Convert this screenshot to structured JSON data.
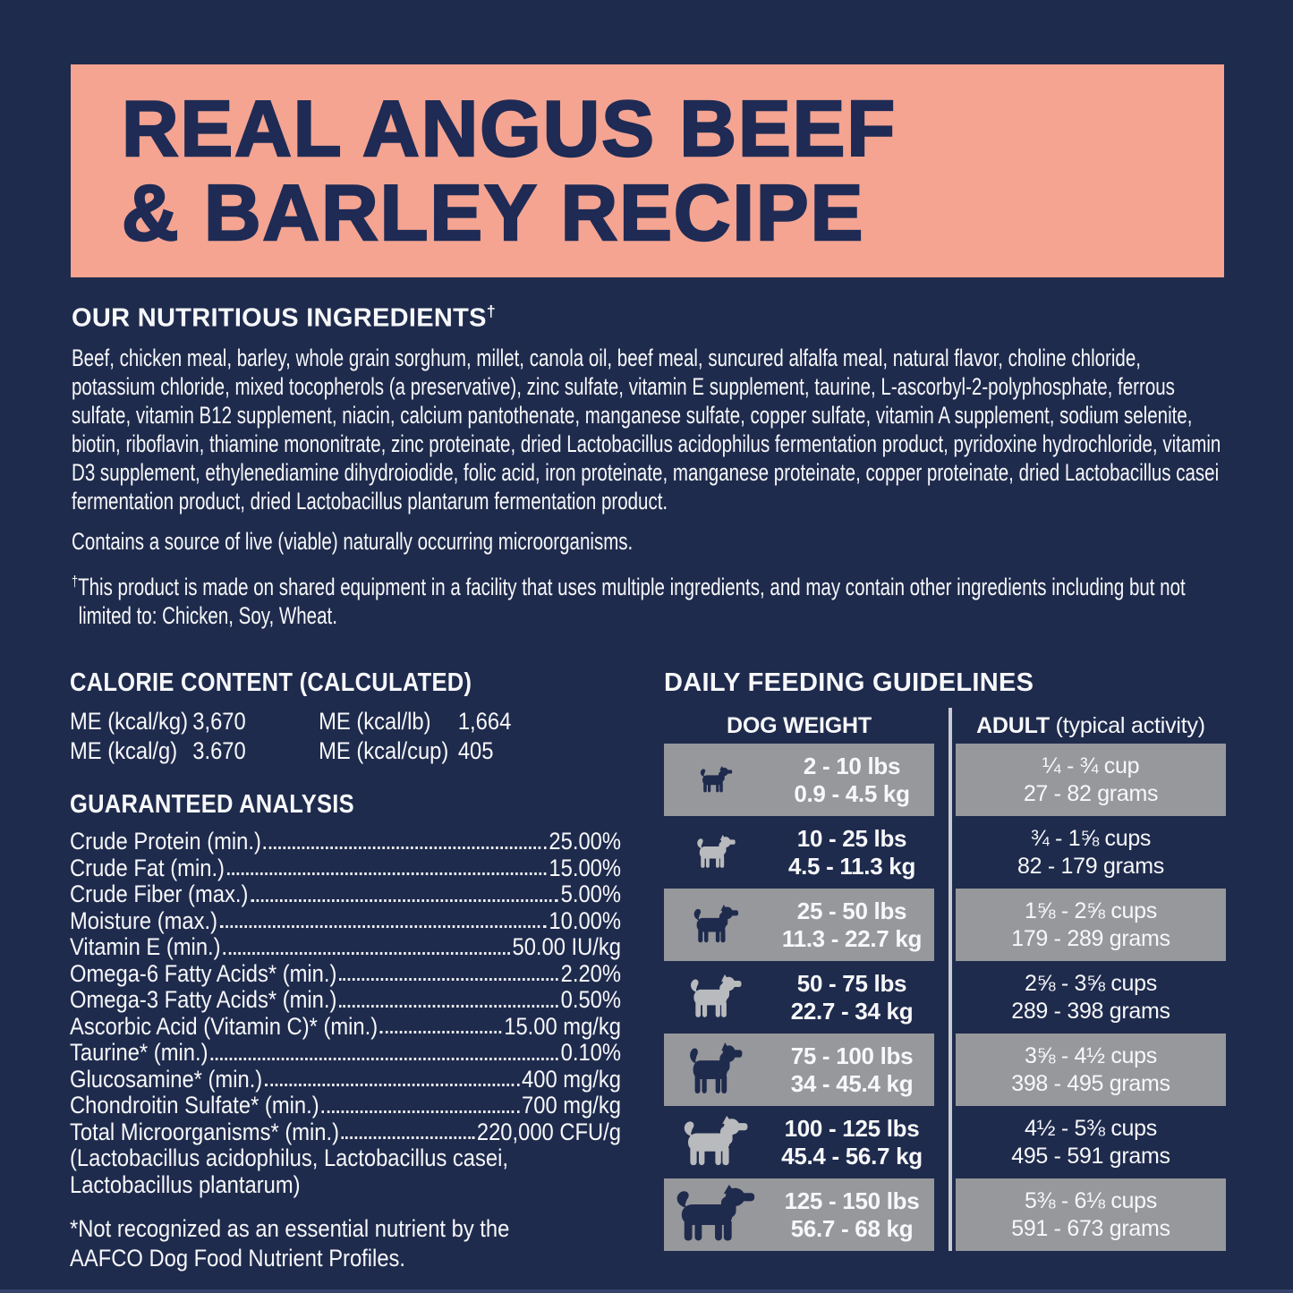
{
  "colors": {
    "background": "#1f2b4d",
    "banner_bg": "#f4a491",
    "banner_text": "#1f2b55",
    "body_text": "#f7f8fa",
    "row_gray": "#97989c",
    "icon_gray": "#b8babd",
    "divider": "#c9cbd0"
  },
  "banner": {
    "title_line1": "REAL ANGUS BEEF",
    "title_line2": "& BARLEY RECIPE"
  },
  "ingredients": {
    "heading": "OUR NUTRITIOUS INGREDIENTS",
    "heading_dagger": "†",
    "body": "Beef, chicken meal, barley, whole grain sorghum, millet, canola oil, beef meal, suncured alfalfa meal, natural flavor, choline chloride, potassium chloride, mixed tocopherols (a preservative), zinc sulfate, vitamin E supplement, taurine, L-ascorbyl-2-polyphosphate, ferrous sulfate, vitamin B12 supplement, niacin, calcium pantothenate, manganese sulfate, copper sulfate, vitamin A supplement, sodium selenite, biotin, riboflavin, thiamine mononitrate, zinc proteinate, dried Lactobacillus acidophilus fermentation product, pyridoxine hydrochloride, vitamin D3 supplement, ethylenediamine dihydroiodide, folic acid, iron proteinate, manganese proteinate, copper proteinate, dried Lactobacillus casei fermentation product, dried Lactobacillus plantarum fermentation product.",
    "contains_note": "Contains a source of live (viable) naturally occurring microorganisms.",
    "footnote_dagger": "†",
    "footnote": "This product is made on shared equipment in a facility that uses multiple ingredients, and may contain other ingredients including but not limited to: Chicken, Soy, Wheat."
  },
  "calories": {
    "heading": "CALORIE CONTENT (CALCULATED)",
    "entries": [
      {
        "label": "ME (kcal/kg)",
        "value": "3,670"
      },
      {
        "label": "ME (kcal/g)",
        "value": "3.670"
      },
      {
        "label": "ME (kcal/lb)",
        "value": "1,664"
      },
      {
        "label": "ME (kcal/cup)",
        "value": "405"
      }
    ]
  },
  "analysis": {
    "heading": "GUARANTEED ANALYSIS",
    "rows": [
      {
        "label": "Crude Protein (min.)",
        "value": "25.00%"
      },
      {
        "label": "Crude Fat (min.)",
        "value": "15.00%"
      },
      {
        "label": "Crude Fiber (max.)",
        "value": "5.00%"
      },
      {
        "label": "Moisture (max.)",
        "value": "10.00%"
      },
      {
        "label": "Vitamin E (min.)",
        "value": "50.00 IU/kg"
      },
      {
        "label": "Omega-6 Fatty Acids* (min.)",
        "value": "2.20%"
      },
      {
        "label": "Omega-3 Fatty Acids* (min.)",
        "value": "0.50%"
      },
      {
        "label": "Ascorbic Acid (Vitamin C)* (min.)",
        "value": "15.00 mg/kg"
      },
      {
        "label": "Taurine* (min.)",
        "value": "0.10%"
      },
      {
        "label": "Glucosamine* (min.)",
        "value": "400 mg/kg"
      },
      {
        "label": "Chondroitin Sulfate* (min.)",
        "value": "700 mg/kg"
      },
      {
        "label": "Total Microorganisms* (min.)",
        "value": "220,000 CFU/g"
      }
    ],
    "extra_lines": [
      "(Lactobacillus acidophilus, Lactobacillus casei,",
      "Lactobacillus plantarum)"
    ],
    "footnote_lines": [
      "*Not recognized as an essential nutrient by the",
      "AAFCO Dog Food Nutrient Profiles."
    ]
  },
  "feeding": {
    "heading": "DAILY FEEDING GUIDELINES",
    "col_weight": "DOG WEIGHT",
    "col_adult_bold": "ADULT",
    "col_adult_rest": " (typical activity)",
    "rows": [
      {
        "lbs": "2 - 10 lbs",
        "kg": "0.9 - 4.5 kg",
        "cups": "¼ - ¾ cup",
        "grams": "27 - 82 grams",
        "icon": "chihuahua-icon"
      },
      {
        "lbs": "10 - 25 lbs",
        "kg": "4.5 - 11.3 kg",
        "cups": "¾ - 1⅝ cups",
        "grams": "82 - 179 grams",
        "icon": "french-bulldog-icon"
      },
      {
        "lbs": "25 - 50 lbs",
        "kg": "11.3 - 22.7 kg",
        "cups": "1⅝ - 2⅝ cups",
        "grams": "179 - 289 grams",
        "icon": "medium-dog-icon"
      },
      {
        "lbs": "50 - 75 lbs",
        "kg": "22.7 - 34 kg",
        "cups": "2⅝ - 3⅝ cups",
        "grams": "289 - 398 grams",
        "icon": "pit-bull-icon"
      },
      {
        "lbs": "75 - 100 lbs",
        "kg": "34 - 45.4 kg",
        "cups": "3⅝ - 4½ cups",
        "grams": "398 - 495 grams",
        "icon": "great-dane-icon"
      },
      {
        "lbs": "100 - 125 lbs",
        "kg": "45.4 - 56.7 kg",
        "cups": "4½ - 5⅜ cups",
        "grams": "495 - 591 grams",
        "icon": "labrador-icon"
      },
      {
        "lbs": "125 - 150 lbs",
        "kg": "56.7 - 68 kg",
        "cups": "5⅜ - 6⅛ cups",
        "grams": "591 - 673 grams",
        "icon": "newfoundland-icon"
      }
    ]
  }
}
